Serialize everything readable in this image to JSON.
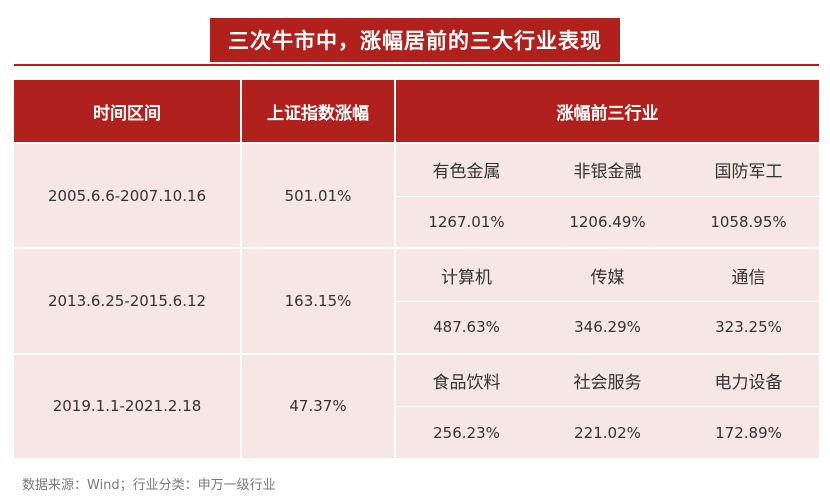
{
  "title": "三次牛市中，涨幅居前的三大行业表现",
  "headers": {
    "period": "时间区间",
    "index_gain": "上证指数涨幅",
    "top3": "涨幅前三行业"
  },
  "rows": [
    {
      "period": "2005.6.6-2007.10.16",
      "index_gain": "501.01%",
      "industries": [
        {
          "name": "有色金属",
          "gain": "1267.01%"
        },
        {
          "name": "非银金融",
          "gain": "1206.49%"
        },
        {
          "name": "国防军工",
          "gain": "1058.95%"
        }
      ]
    },
    {
      "period": "2013.6.25-2015.6.12",
      "index_gain": "163.15%",
      "industries": [
        {
          "name": "计算机",
          "gain": "487.63%"
        },
        {
          "name": "传媒",
          "gain": "346.29%"
        },
        {
          "name": "通信",
          "gain": "323.25%"
        }
      ]
    },
    {
      "period": "2019.1.1-2021.2.18",
      "index_gain": "47.37%",
      "industries": [
        {
          "name": "食品饮料",
          "gain": "256.23%"
        },
        {
          "name": "社会服务",
          "gain": "221.02%"
        },
        {
          "name": "电力设备",
          "gain": "172.89%"
        }
      ]
    }
  ],
  "source": "数据来源：Wind；行业分类：申万一级行业"
}
